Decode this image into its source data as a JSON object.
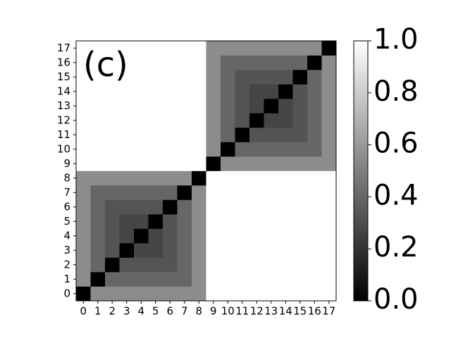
{
  "chart_data": {
    "type": "heatmap",
    "annotation": "(c)",
    "x": [
      0,
      1,
      2,
      3,
      4,
      5,
      6,
      7,
      8,
      9,
      10,
      11,
      12,
      13,
      14,
      15,
      16,
      17
    ],
    "y": [
      0,
      1,
      2,
      3,
      4,
      5,
      6,
      7,
      8,
      9,
      10,
      11,
      12,
      13,
      14,
      15,
      16,
      17
    ],
    "z": [
      [
        0,
        0.55,
        0.55,
        0.55,
        0.55,
        0.55,
        0.55,
        0.55,
        0.55,
        1,
        1,
        1,
        1,
        1,
        1,
        1,
        1,
        1
      ],
      [
        0.55,
        0,
        0.4,
        0.4,
        0.4,
        0.4,
        0.4,
        0.4,
        0.55,
        1,
        1,
        1,
        1,
        1,
        1,
        1,
        1,
        1
      ],
      [
        0.55,
        0.4,
        0,
        0.33,
        0.33,
        0.33,
        0.33,
        0.4,
        0.55,
        1,
        1,
        1,
        1,
        1,
        1,
        1,
        1,
        1
      ],
      [
        0.55,
        0.4,
        0.33,
        0,
        0.27,
        0.27,
        0.33,
        0.4,
        0.55,
        1,
        1,
        1,
        1,
        1,
        1,
        1,
        1,
        1
      ],
      [
        0.55,
        0.4,
        0.33,
        0.27,
        0,
        0.27,
        0.33,
        0.4,
        0.55,
        1,
        1,
        1,
        1,
        1,
        1,
        1,
        1,
        1
      ],
      [
        0.55,
        0.4,
        0.33,
        0.27,
        0.27,
        0,
        0.33,
        0.4,
        0.55,
        1,
        1,
        1,
        1,
        1,
        1,
        1,
        1,
        1
      ],
      [
        0.55,
        0.4,
        0.33,
        0.33,
        0.33,
        0.33,
        0,
        0.4,
        0.55,
        1,
        1,
        1,
        1,
        1,
        1,
        1,
        1,
        1
      ],
      [
        0.55,
        0.4,
        0.4,
        0.4,
        0.4,
        0.4,
        0.4,
        0,
        0.55,
        1,
        1,
        1,
        1,
        1,
        1,
        1,
        1,
        1
      ],
      [
        0.55,
        0.55,
        0.55,
        0.55,
        0.55,
        0.55,
        0.55,
        0.55,
        0,
        1,
        1,
        1,
        1,
        1,
        1,
        1,
        1,
        1
      ],
      [
        1,
        1,
        1,
        1,
        1,
        1,
        1,
        1,
        1,
        0,
        0.55,
        0.55,
        0.55,
        0.55,
        0.55,
        0.55,
        0.55,
        0.55
      ],
      [
        1,
        1,
        1,
        1,
        1,
        1,
        1,
        1,
        1,
        0.55,
        0,
        0.4,
        0.4,
        0.4,
        0.4,
        0.4,
        0.4,
        0.55
      ],
      [
        1,
        1,
        1,
        1,
        1,
        1,
        1,
        1,
        1,
        0.55,
        0.4,
        0,
        0.33,
        0.33,
        0.33,
        0.33,
        0.4,
        0.55
      ],
      [
        1,
        1,
        1,
        1,
        1,
        1,
        1,
        1,
        1,
        0.55,
        0.4,
        0.33,
        0,
        0.27,
        0.27,
        0.33,
        0.4,
        0.55
      ],
      [
        1,
        1,
        1,
        1,
        1,
        1,
        1,
        1,
        1,
        0.55,
        0.4,
        0.33,
        0.27,
        0,
        0.27,
        0.33,
        0.4,
        0.55
      ],
      [
        1,
        1,
        1,
        1,
        1,
        1,
        1,
        1,
        1,
        0.55,
        0.4,
        0.33,
        0.27,
        0.27,
        0,
        0.33,
        0.4,
        0.55
      ],
      [
        1,
        1,
        1,
        1,
        1,
        1,
        1,
        1,
        1,
        0.55,
        0.4,
        0.33,
        0.33,
        0.33,
        0.33,
        0,
        0.4,
        0.55
      ],
      [
        1,
        1,
        1,
        1,
        1,
        1,
        1,
        1,
        1,
        0.55,
        0.4,
        0.4,
        0.4,
        0.4,
        0.4,
        0.4,
        0,
        0.55
      ],
      [
        1,
        1,
        1,
        1,
        1,
        1,
        1,
        1,
        1,
        0.55,
        0.55,
        0.55,
        0.55,
        0.55,
        0.55,
        0.55,
        0.55,
        0
      ]
    ],
    "colorbar_lim": [
      0,
      1
    ],
    "colorbar_ticks": [
      {
        "value": 0,
        "label": "0.0"
      },
      0.2,
      0.4,
      0.6,
      0.8,
      {
        "value": 1,
        "label": "1.0"
      }
    ]
  }
}
